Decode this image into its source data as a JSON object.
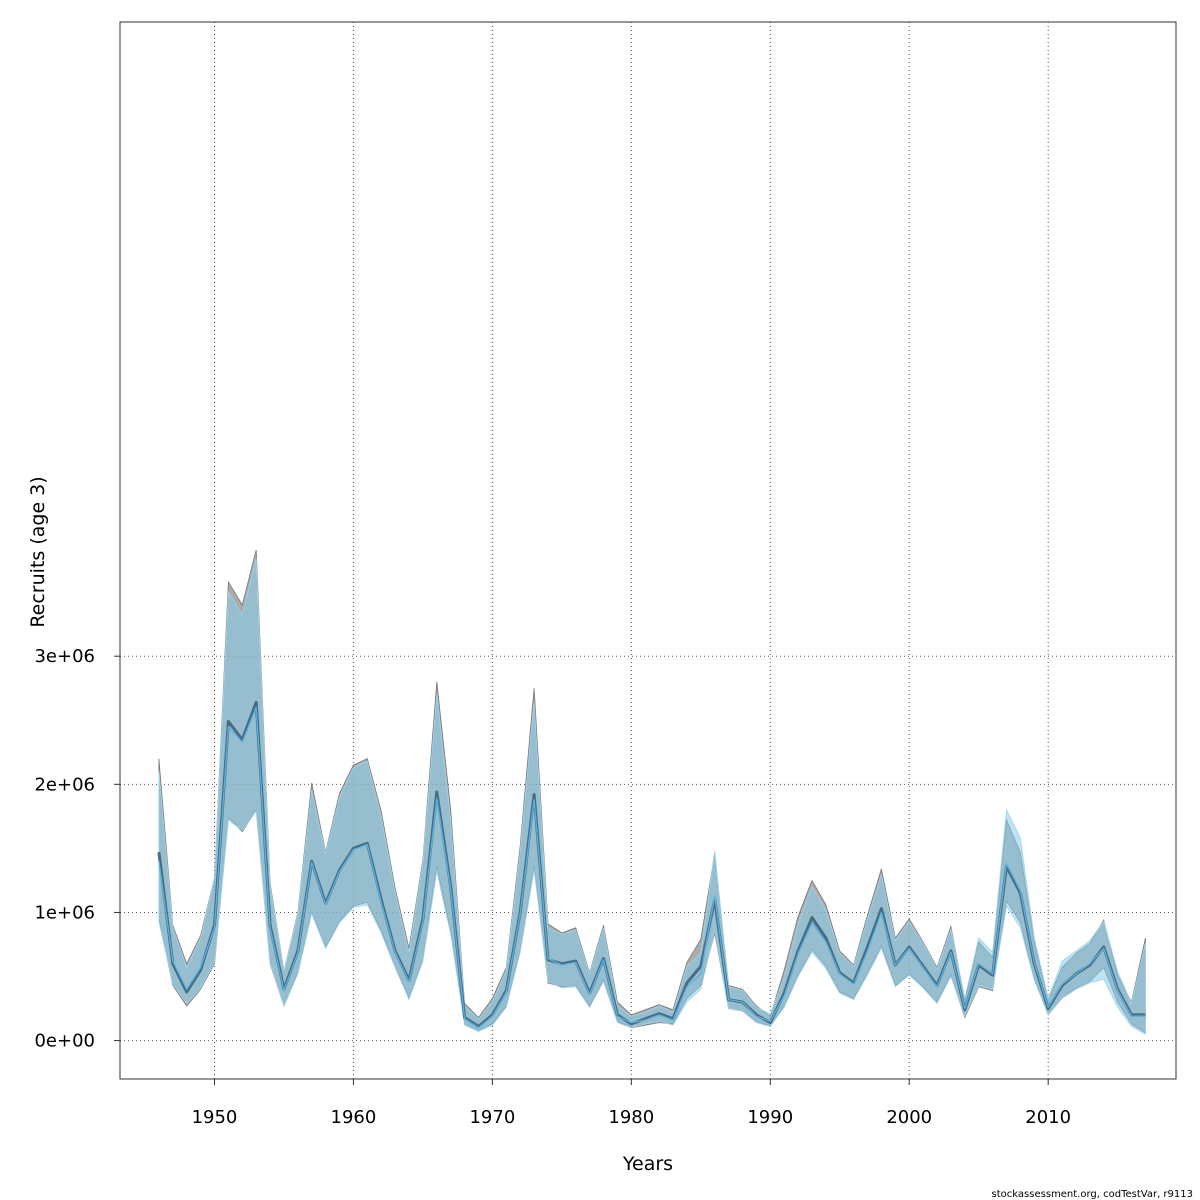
{
  "chart_data": {
    "type": "line",
    "xlabel": "Years",
    "ylabel": "Recruits (age 3)",
    "footnote": "stockassessment.org, codTestVar, r9113",
    "xlim": [
      1943.2,
      2019.2
    ],
    "ylim": [
      -300000,
      7950000
    ],
    "x_ticks": [
      1950,
      1960,
      1970,
      1980,
      1990,
      2000,
      2010
    ],
    "x_tick_labels": [
      "1950",
      "1960",
      "1970",
      "1980",
      "1990",
      "2000",
      "2010"
    ],
    "y_ticks": [
      0,
      1000000,
      2000000,
      3000000
    ],
    "y_tick_labels": [
      "0e+00",
      "1e+06",
      "2e+06",
      "3e+06"
    ],
    "grid": true,
    "grid_style": "dotted",
    "colors": {
      "series_a_line": "#4a6b80",
      "series_a_band": "#808080",
      "series_b_line": "#55b4e4",
      "series_b_band": "#87ceeb",
      "overlap_band": "#a8c6d8",
      "grid": "#555555"
    },
    "x": [
      1946,
      1947,
      1948,
      1949,
      1950,
      1951,
      1952,
      1953,
      1954,
      1955,
      1956,
      1957,
      1958,
      1959,
      1960,
      1961,
      1962,
      1963,
      1964,
      1965,
      1966,
      1967,
      1968,
      1969,
      1970,
      1971,
      1972,
      1973,
      1974,
      1975,
      1976,
      1977,
      1978,
      1979,
      1980,
      1981,
      1982,
      1983,
      1984,
      1985,
      1986,
      1987,
      1988,
      1989,
      1990,
      1991,
      1992,
      1993,
      1994,
      1995,
      1996,
      1997,
      1998,
      1999,
      2000,
      2001,
      2002,
      2003,
      2004,
      2005,
      2006,
      2007,
      2008,
      2009,
      2010,
      2011,
      2012,
      2013,
      2014,
      2015,
      2016,
      2017
    ],
    "series": [
      {
        "values": [
          1470000,
          600000,
          380000,
          550000,
          900000,
          2490000,
          2350000,
          2640000,
          900000,
          400000,
          700000,
          1400000,
          1070000,
          1330000,
          1500000,
          1540000,
          1100000,
          700000,
          470000,
          950000,
          1940000,
          1200000,
          180000,
          110000,
          200000,
          390000,
          1000000,
          1920000,
          630000,
          600000,
          620000,
          370000,
          640000,
          200000,
          130000,
          170000,
          210000,
          170000,
          450000,
          580000,
          1100000,
          320000,
          300000,
          200000,
          140000,
          370000,
          700000,
          960000,
          800000,
          530000,
          450000,
          730000,
          1030000,
          590000,
          730000,
          580000,
          430000,
          700000,
          240000,
          590000,
          510000,
          1360000,
          1150000,
          600000,
          250000,
          430000,
          520000,
          590000,
          730000,
          400000,
          200000,
          200000
        ],
        "lower": [
          950000,
          430000,
          270000,
          400000,
          600000,
          1740000,
          1630000,
          1800000,
          600000,
          270000,
          530000,
          1000000,
          730000,
          930000,
          1050000,
          1080000,
          860000,
          580000,
          330000,
          630000,
          1360000,
          850000,
          130000,
          80000,
          130000,
          270000,
          700000,
          1360000,
          450000,
          420000,
          430000,
          270000,
          470000,
          150000,
          100000,
          120000,
          140000,
          130000,
          330000,
          430000,
          840000,
          250000,
          230000,
          150000,
          110000,
          270000,
          510000,
          710000,
          580000,
          380000,
          330000,
          530000,
          740000,
          430000,
          520000,
          420000,
          300000,
          510000,
          180000,
          420000,
          390000,
          1090000,
          920000,
          480000,
          200000,
          330000,
          410000,
          460000,
          570000,
          300000,
          130000,
          60000
        ],
        "upper": [
          2200000,
          900000,
          600000,
          820000,
          1270000,
          3580000,
          3400000,
          3830000,
          1230000,
          540000,
          1000000,
          2010000,
          1470000,
          1930000,
          2150000,
          2200000,
          1790000,
          1190000,
          720000,
          1410000,
          2800000,
          1800000,
          290000,
          180000,
          330000,
          570000,
          1520000,
          2750000,
          910000,
          840000,
          880000,
          530000,
          900000,
          300000,
          200000,
          240000,
          280000,
          240000,
          610000,
          790000,
          1460000,
          430000,
          400000,
          270000,
          190000,
          550000,
          970000,
          1250000,
          1060000,
          700000,
          590000,
          980000,
          1340000,
          800000,
          950000,
          770000,
          570000,
          890000,
          310000,
          770000,
          650000,
          1720000,
          1470000,
          770000,
          320000,
          570000,
          680000,
          760000,
          940000,
          510000,
          300000,
          800000
        ]
      },
      {
        "values": [
          1400000,
          620000,
          400000,
          570000,
          880000,
          2450000,
          2330000,
          2600000,
          880000,
          390000,
          690000,
          1390000,
          1060000,
          1320000,
          1490000,
          1530000,
          1080000,
          690000,
          460000,
          930000,
          1890000,
          1180000,
          170000,
          100000,
          190000,
          380000,
          990000,
          1880000,
          640000,
          590000,
          610000,
          360000,
          630000,
          190000,
          140000,
          160000,
          200000,
          160000,
          420000,
          520000,
          1130000,
          320000,
          300000,
          190000,
          150000,
          350000,
          680000,
          920000,
          770000,
          520000,
          440000,
          700000,
          1000000,
          590000,
          720000,
          570000,
          420000,
          690000,
          250000,
          600000,
          520000,
          1380000,
          1170000,
          610000,
          260000,
          440000,
          520000,
          600000,
          720000,
          390000,
          190000,
          190000
        ],
        "lower": [
          930000,
          440000,
          290000,
          410000,
          610000,
          1720000,
          1640000,
          1790000,
          610000,
          270000,
          520000,
          990000,
          720000,
          920000,
          1040000,
          1060000,
          840000,
          570000,
          320000,
          620000,
          1320000,
          830000,
          120000,
          70000,
          120000,
          260000,
          690000,
          1330000,
          460000,
          410000,
          420000,
          260000,
          460000,
          140000,
          100000,
          130000,
          150000,
          120000,
          300000,
          400000,
          860000,
          250000,
          230000,
          140000,
          110000,
          260000,
          500000,
          690000,
          560000,
          370000,
          320000,
          510000,
          720000,
          420000,
          510000,
          410000,
          290000,
          500000,
          190000,
          430000,
          400000,
          1050000,
          880000,
          470000,
          200000,
          330000,
          400000,
          450000,
          480000,
          260000,
          110000,
          50000
        ],
        "upper": [
          2100000,
          880000,
          570000,
          800000,
          1270000,
          3500000,
          3320000,
          3760000,
          1210000,
          540000,
          990000,
          1950000,
          1460000,
          1900000,
          2130000,
          2180000,
          1750000,
          1160000,
          690000,
          1390000,
          2700000,
          1720000,
          270000,
          170000,
          300000,
          550000,
          1480000,
          2640000,
          880000,
          830000,
          860000,
          520000,
          880000,
          270000,
          190000,
          220000,
          270000,
          220000,
          580000,
          680000,
          1480000,
          420000,
          390000,
          260000,
          210000,
          490000,
          910000,
          1200000,
          1020000,
          680000,
          580000,
          950000,
          1290000,
          780000,
          930000,
          760000,
          560000,
          870000,
          330000,
          800000,
          690000,
          1800000,
          1580000,
          800000,
          330000,
          620000,
          700000,
          780000,
          930000,
          540000,
          290000,
          760000
        ]
      }
    ]
  }
}
